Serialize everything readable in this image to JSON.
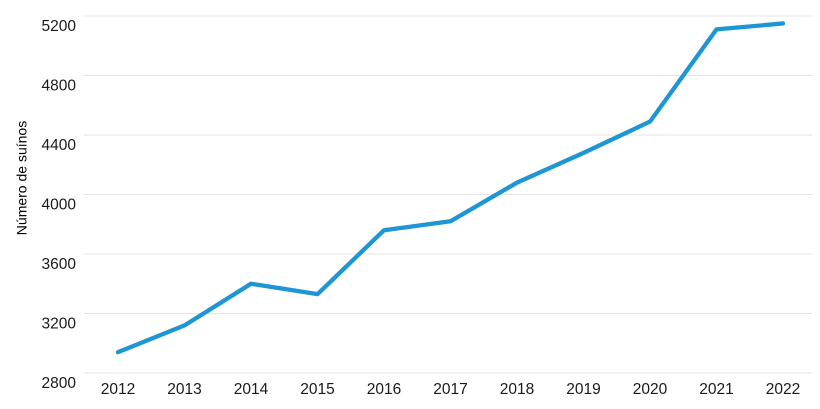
{
  "chart_data": {
    "type": "line",
    "ylabel": "Número de suínos",
    "categories": [
      "2012",
      "2013",
      "2014",
      "2015",
      "2016",
      "2017",
      "2018",
      "2019",
      "2020",
      "2021",
      "2022"
    ],
    "series": [
      {
        "name": "Número de suínos",
        "values": [
          2940,
          3120,
          3400,
          3330,
          3760,
          3820,
          4080,
          4280,
          4490,
          5110,
          5150
        ],
        "color": "#1f96d4"
      }
    ],
    "ylim": [
      2800,
      5200
    ],
    "yticks": [
      2800,
      3200,
      3600,
      4000,
      4400,
      4800,
      5200
    ],
    "grid": "horizontal-only",
    "legend_position": "none"
  },
  "colors": {
    "line": "#1f96d4",
    "gridline": "#e4e4e4",
    "text": "#1a1a1a",
    "background": "#ffffff"
  }
}
